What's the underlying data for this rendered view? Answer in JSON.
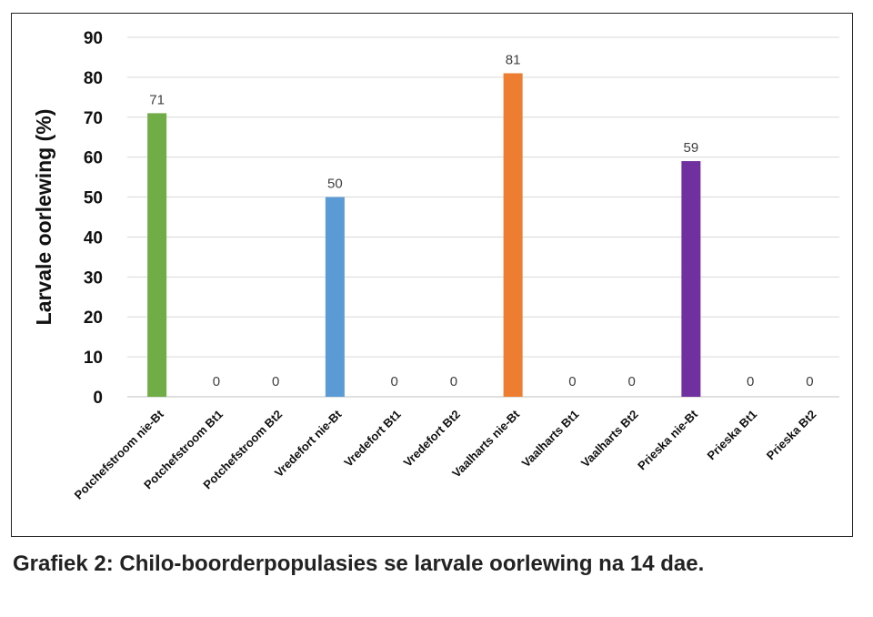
{
  "caption": "Grafiek 2: Chilo-boorderpopulasies se larvale oorlewing na 14 dae.",
  "chart_data": {
    "type": "bar",
    "title": "",
    "xlabel": "",
    "ylabel": "Larvale oorlewing (%)",
    "ylim": [
      0,
      90
    ],
    "yticks": [
      0,
      10,
      20,
      30,
      40,
      50,
      60,
      70,
      80,
      90
    ],
    "grid": true,
    "legend": "none",
    "categories": [
      "Potchefstroom nie-Bt",
      "Potchefstroom Bt1",
      "Potchefstroom Bt2",
      "Vredefort nie-Bt",
      "Vredefort Bt1",
      "Vredefort Bt2",
      "Vaalharts nie-Bt",
      "Vaalharts Bt1",
      "Vaalharts Bt2",
      "Prieska nie-Bt",
      "Prieska Bt1",
      "Prieska Bt2"
    ],
    "values": [
      71,
      0,
      0,
      50,
      0,
      0,
      81,
      0,
      0,
      59,
      0,
      0
    ],
    "bar_colors": [
      "#70AD47",
      "#70AD47",
      "#70AD47",
      "#5B9BD5",
      "#5B9BD5",
      "#5B9BD5",
      "#ED7D31",
      "#ED7D31",
      "#ED7D31",
      "#7030A0",
      "#7030A0",
      "#7030A0"
    ],
    "data_labels": [
      "71",
      "0",
      "0",
      "50",
      "0",
      "0",
      "81",
      "0",
      "0",
      "59",
      "0",
      "0"
    ]
  }
}
